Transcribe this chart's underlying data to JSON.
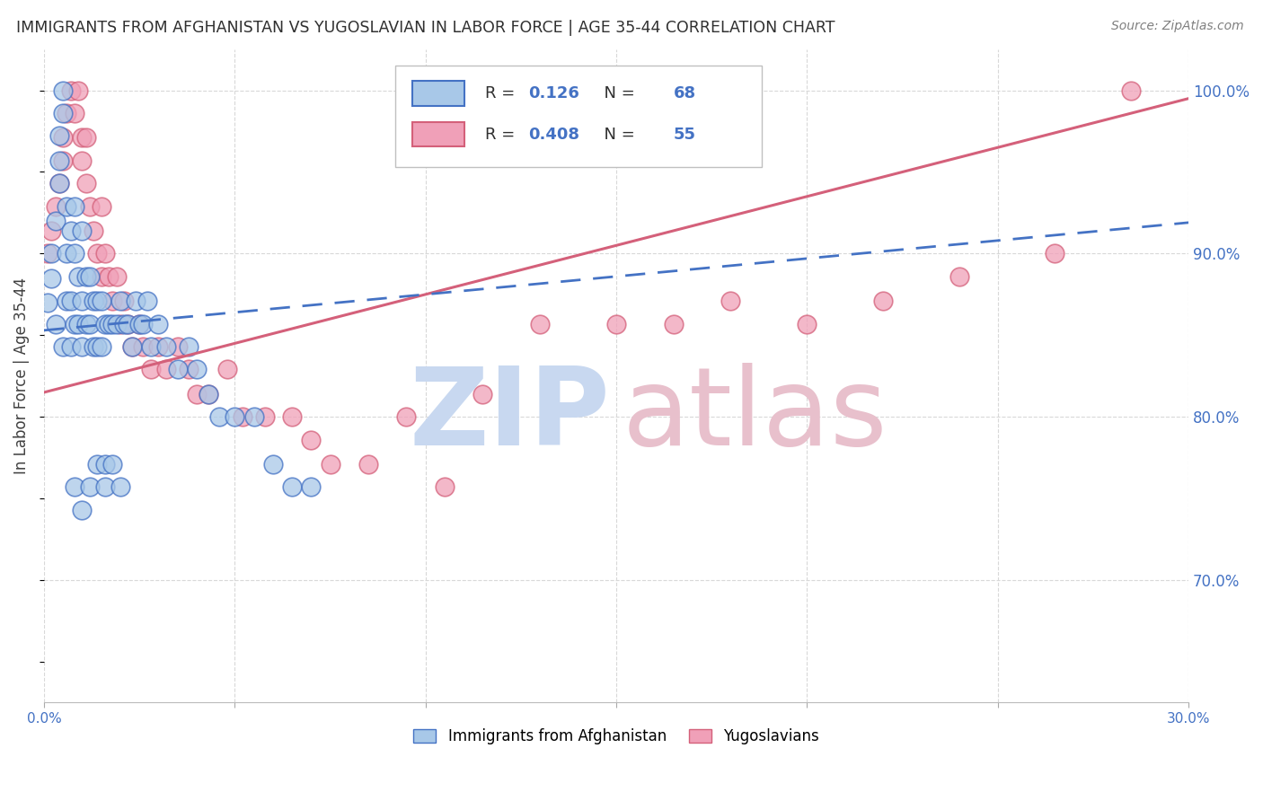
{
  "title": "IMMIGRANTS FROM AFGHANISTAN VS YUGOSLAVIAN IN LABOR FORCE | AGE 35-44 CORRELATION CHART",
  "source": "Source: ZipAtlas.com",
  "ylabel": "In Labor Force | Age 35-44",
  "legend_label1": "Immigrants from Afghanistan",
  "legend_label2": "Yugoslavians",
  "R1": 0.126,
  "N1": 68,
  "R2": 0.408,
  "N2": 55,
  "color1": "#A8C8E8",
  "color2": "#F0A0B8",
  "trendline1_color": "#4472C4",
  "trendline2_color": "#D4607A",
  "xlim": [
    0.0,
    0.3
  ],
  "ylim": [
    0.625,
    1.025
  ],
  "xticks": [
    0.0,
    0.05,
    0.1,
    0.15,
    0.2,
    0.25,
    0.3
  ],
  "xticklabels": [
    "0.0%",
    "",
    "",
    "",
    "",
    "",
    "30.0%"
  ],
  "yticks_right": [
    0.7,
    0.8,
    0.9,
    1.0
  ],
  "ytick_labels_right": [
    "70.0%",
    "80.0%",
    "90.0%",
    "100.0%"
  ],
  "background_color": "#ffffff",
  "grid_color": "#d8d8d8",
  "axis_label_color": "#4472C4",
  "title_color": "#303030",
  "source_color": "#808080",
  "watermark_zip_color": "#C8D8F0",
  "watermark_atlas_color": "#E8C0CC",
  "trendline1_slope": 0.35,
  "trendline1_intercept": 0.852,
  "trendline2_slope": 1.55,
  "trendline2_intercept": 0.82
}
